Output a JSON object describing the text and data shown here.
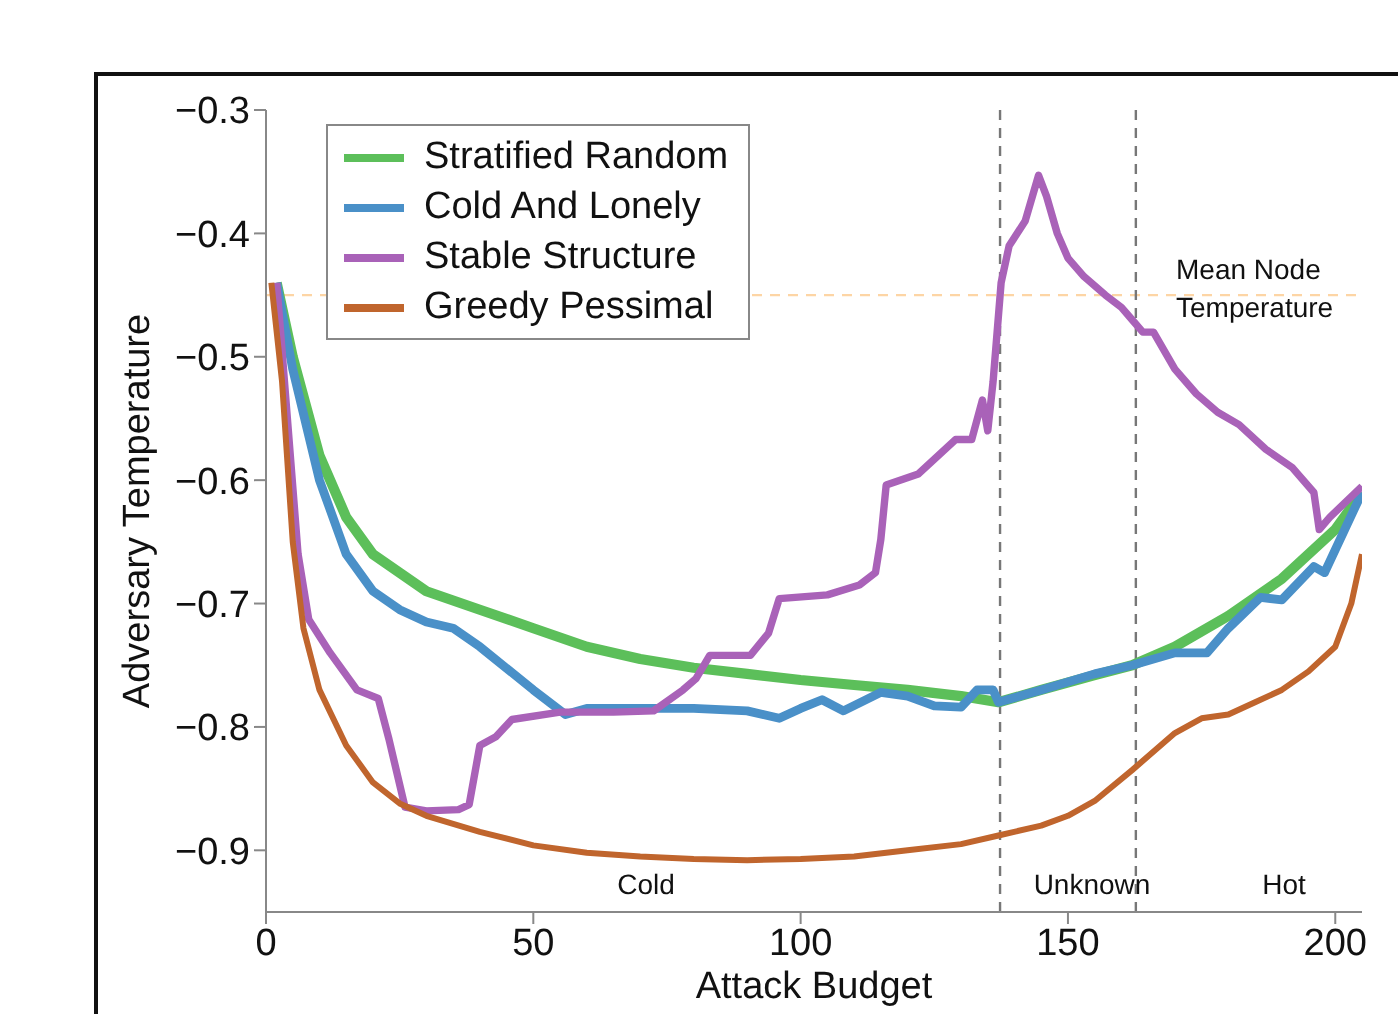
{
  "chart_data": {
    "type": "line",
    "xlabel": "Attack Budget",
    "ylabel": "Adversary Temperature",
    "xlim": [
      0,
      205
    ],
    "ylim": [
      -0.95,
      -0.3
    ],
    "xticks": [
      0,
      50,
      100,
      150,
      200
    ],
    "yticks": [
      -0.9,
      -0.8,
      -0.7,
      -0.6,
      -0.5,
      -0.4,
      -0.3
    ],
    "legend": "top left",
    "marker": "none",
    "line_style": "solid",
    "series": [
      {
        "name": "Stratified Random",
        "color": "#5cbf5a",
        "x": [
          2,
          5,
          10,
          15,
          20,
          25,
          30,
          40,
          50,
          60,
          70,
          80,
          90,
          100,
          110,
          120,
          130,
          137,
          145,
          155,
          162,
          170,
          180,
          190,
          200,
          205
        ],
        "values": [
          -0.44,
          -0.5,
          -0.58,
          -0.63,
          -0.66,
          -0.675,
          -0.69,
          -0.705,
          -0.72,
          -0.735,
          -0.745,
          -0.752,
          -0.757,
          -0.762,
          -0.766,
          -0.77,
          -0.775,
          -0.78,
          -0.77,
          -0.758,
          -0.75,
          -0.735,
          -0.71,
          -0.68,
          -0.64,
          -0.61
        ]
      },
      {
        "name": "Cold And Lonely",
        "color": "#4a90c8",
        "x": [
          2,
          5,
          10,
          15,
          20,
          25,
          30,
          35,
          40,
          50,
          56,
          60,
          70,
          80,
          90,
          96,
          100,
          104,
          108,
          115,
          120,
          125,
          130,
          133,
          136,
          137,
          145,
          155,
          162,
          170,
          176,
          180,
          186,
          190,
          196,
          198,
          205
        ],
        "values": [
          -0.44,
          -0.51,
          -0.6,
          -0.66,
          -0.69,
          -0.705,
          -0.715,
          -0.72,
          -0.735,
          -0.77,
          -0.79,
          -0.785,
          -0.785,
          -0.785,
          -0.787,
          -0.793,
          -0.785,
          -0.778,
          -0.787,
          -0.772,
          -0.775,
          -0.783,
          -0.784,
          -0.77,
          -0.77,
          -0.78,
          -0.77,
          -0.757,
          -0.75,
          -0.74,
          -0.74,
          -0.72,
          -0.695,
          -0.697,
          -0.67,
          -0.675,
          -0.61
        ]
      },
      {
        "name": "Stable Structure",
        "color": "#a962b8",
        "x": [
          2,
          4,
          6,
          8,
          12,
          17,
          21,
          23,
          26,
          30,
          36,
          38,
          40,
          43,
          46,
          55,
          65,
          72.5,
          78,
          80.4,
          83,
          90.6,
          94,
          96,
          105,
          111,
          114,
          115,
          116,
          122,
          129,
          132,
          134,
          135,
          136,
          137.5,
          139,
          142,
          144.5,
          146,
          148,
          150,
          153,
          157,
          160,
          162,
          164,
          166,
          170,
          174,
          178,
          182,
          187,
          192,
          196,
          197,
          199,
          205
        ],
        "values": [
          -0.44,
          -0.55,
          -0.66,
          -0.713,
          -0.74,
          -0.77,
          -0.777,
          -0.81,
          -0.865,
          -0.868,
          -0.867,
          -0.863,
          -0.815,
          -0.808,
          -0.794,
          -0.788,
          -0.788,
          -0.787,
          -0.77,
          -0.761,
          -0.742,
          -0.742,
          -0.724,
          -0.696,
          -0.693,
          -0.685,
          -0.675,
          -0.648,
          -0.604,
          -0.595,
          -0.567,
          -0.567,
          -0.535,
          -0.56,
          -0.52,
          -0.44,
          -0.41,
          -0.39,
          -0.353,
          -0.37,
          -0.4,
          -0.42,
          -0.435,
          -0.45,
          -0.46,
          -0.47,
          -0.48,
          -0.48,
          -0.51,
          -0.53,
          -0.545,
          -0.555,
          -0.575,
          -0.59,
          -0.61,
          -0.64,
          -0.63,
          -0.605
        ]
      },
      {
        "name": "Greedy Pessimal",
        "color": "#c0652d",
        "x": [
          1,
          3,
          5,
          7,
          10,
          15,
          20,
          25,
          30,
          40,
          50,
          60,
          70,
          80,
          90,
          100,
          110,
          120,
          130,
          137,
          145,
          150,
          155,
          162,
          170,
          175,
          180,
          185,
          190,
          195,
          200,
          203,
          205
        ],
        "values": [
          -0.44,
          -0.52,
          -0.65,
          -0.72,
          -0.77,
          -0.815,
          -0.845,
          -0.862,
          -0.872,
          -0.885,
          -0.896,
          -0.902,
          -0.905,
          -0.907,
          -0.908,
          -0.907,
          -0.905,
          -0.9,
          -0.895,
          -0.888,
          -0.88,
          -0.872,
          -0.86,
          -0.835,
          -0.805,
          -0.793,
          -0.79,
          -0.78,
          -0.77,
          -0.755,
          -0.735,
          -0.7,
          -0.66
        ]
      }
    ],
    "ref_lines": [
      {
        "axis": "y",
        "value": -0.45,
        "label": "Mean Node Temperature",
        "color": "#fdd5a5",
        "line_style": "dashed"
      },
      {
        "axis": "x",
        "value": 137.3,
        "label": null,
        "color": "#777777",
        "line_style": "dashed"
      },
      {
        "axis": "x",
        "value": 162.7,
        "label": null,
        "color": "#777777",
        "line_style": "dashed"
      }
    ],
    "annotations": [
      "Cold",
      "Unknown",
      "Hot"
    ]
  }
}
